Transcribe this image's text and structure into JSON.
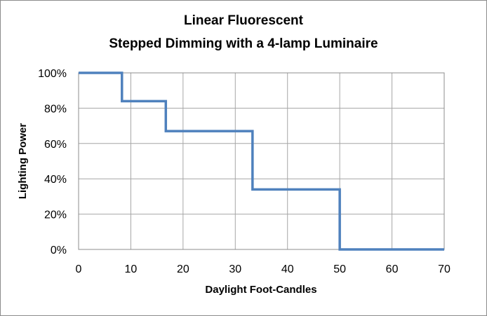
{
  "chart_data": {
    "type": "line",
    "title_lines": [
      "Linear Fluorescent",
      "Stepped Dimming with a 4-lamp Luminaire"
    ],
    "xlabel": "Daylight Foot-Candles",
    "ylabel": "Lighting Power",
    "xlim": [
      0,
      70
    ],
    "ylim": [
      0,
      1
    ],
    "x_ticks": [
      0,
      10,
      20,
      30,
      40,
      50,
      60,
      70
    ],
    "x_tick_labels": [
      "0",
      "10",
      "20",
      "30",
      "40",
      "50",
      "60",
      "70"
    ],
    "y_ticks": [
      0,
      0.2,
      0.4,
      0.6,
      0.8,
      1.0
    ],
    "y_tick_labels": [
      "0%",
      "20%",
      "40%",
      "60%",
      "80%",
      "100%"
    ],
    "grid": true,
    "legend": "none",
    "series": [
      {
        "color": "#4f81bd",
        "x": [
          0,
          8.3,
          8.3,
          16.7,
          16.7,
          33.3,
          33.3,
          50,
          50,
          70
        ],
        "y": [
          1.0,
          1.0,
          0.84,
          0.84,
          0.67,
          0.67,
          0.34,
          0.34,
          0.0,
          0.0
        ]
      }
    ]
  }
}
